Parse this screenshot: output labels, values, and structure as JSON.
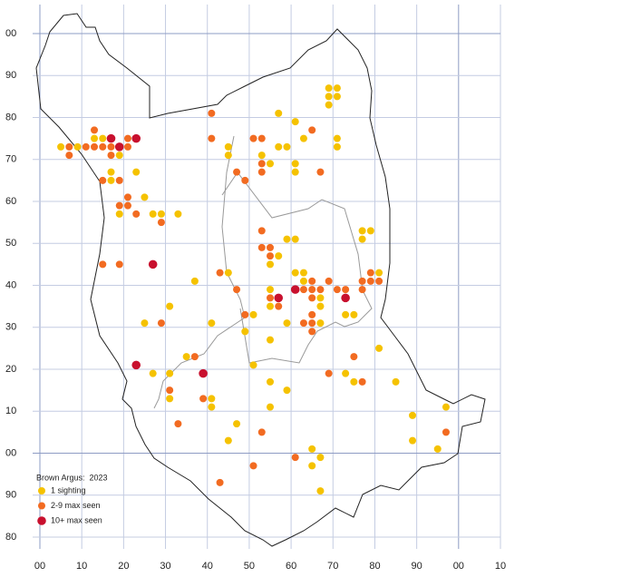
{
  "chart_data": {
    "type": "scatter",
    "legend_title": "Brown Argus:  2023",
    "legend": "lower left",
    "grid": true,
    "xlim": [
      0,
      110
    ],
    "ylim": [
      -20,
      100
    ],
    "xticks": [
      {
        "value": 0,
        "label": "00"
      },
      10,
      20,
      30,
      40,
      50,
      60,
      70,
      80,
      90,
      {
        "value": 100,
        "label": "00"
      },
      {
        "value": 110,
        "label": "10"
      }
    ],
    "yticks": [
      {
        "value": 100,
        "label": "00"
      },
      90,
      80,
      70,
      60,
      50,
      40,
      30,
      20,
      10,
      {
        "value": 0,
        "label": "00"
      },
      {
        "value": -10,
        "label": "90"
      },
      {
        "value": -20,
        "label": "80"
      }
    ],
    "series": [
      {
        "name": "1 sighting",
        "color": "#f5c200",
        "x": [
          5,
          9,
          13,
          15,
          19,
          17,
          23,
          17,
          25,
          19,
          27,
          29,
          33,
          37,
          31,
          25,
          45,
          45,
          53,
          55,
          57,
          57,
          59,
          61,
          61,
          61,
          63,
          69,
          69,
          69,
          71,
          71,
          71,
          71,
          57,
          55,
          59,
          61,
          45,
          61,
          63,
          63,
          55,
          55,
          67,
          67,
          67,
          59,
          51,
          49,
          41,
          55,
          81,
          77,
          77,
          79,
          73,
          75,
          81,
          73,
          75,
          85,
          27,
          31,
          31,
          35,
          41,
          41,
          47,
          45,
          51,
          55,
          55,
          59,
          65,
          67,
          65,
          67,
          89,
          89,
          97,
          95
        ],
        "values": [
          73,
          73,
          75,
          75,
          71,
          67,
          67,
          65,
          61,
          57,
          57,
          57,
          57,
          41,
          35,
          31,
          73,
          71,
          71,
          69,
          81,
          73,
          73,
          79,
          69,
          67,
          75,
          87,
          85,
          83,
          87,
          85,
          75,
          73,
          47,
          45,
          51,
          51,
          43,
          43,
          43,
          41,
          39,
          35,
          37,
          35,
          31,
          31,
          33,
          29,
          31,
          27,
          43,
          53,
          51,
          53,
          33,
          33,
          25,
          19,
          17,
          17,
          19,
          19,
          13,
          23,
          13,
          11,
          7,
          3,
          21,
          17,
          11,
          15,
          1,
          -1,
          -3,
          -9,
          9,
          3,
          11,
          1
        ]
      },
      {
        "name": "2-9 max seen",
        "color": "#f26b21",
        "x": [
          7,
          7,
          11,
          13,
          13,
          15,
          17,
          17,
          19,
          21,
          21,
          15,
          19,
          21,
          19,
          21,
          23,
          29,
          15,
          19,
          29,
          41,
          41,
          51,
          53,
          53,
          47,
          53,
          49,
          65,
          67,
          53,
          53,
          55,
          55,
          43,
          47,
          65,
          63,
          65,
          67,
          69,
          71,
          73,
          55,
          57,
          65,
          65,
          63,
          65,
          65,
          49,
          77,
          77,
          79,
          79,
          81,
          75,
          69,
          77,
          31,
          37,
          39,
          33,
          53,
          51,
          61,
          43,
          97
        ],
        "values": [
          73,
          71,
          73,
          73,
          77,
          73,
          73,
          71,
          73,
          75,
          73,
          65,
          65,
          61,
          59,
          59,
          57,
          55,
          45,
          45,
          31,
          81,
          75,
          75,
          75,
          69,
          67,
          67,
          65,
          77,
          67,
          53,
          49,
          49,
          47,
          43,
          39,
          41,
          39,
          39,
          39,
          41,
          39,
          39,
          37,
          35,
          37,
          33,
          31,
          31,
          29,
          33,
          41,
          39,
          43,
          41,
          41,
          23,
          19,
          17,
          15,
          23,
          13,
          7,
          5,
          -3,
          -1,
          -7,
          5
        ]
      },
      {
        "name": "10+ max seen",
        "color": "#c8102e",
        "x": [
          17,
          19,
          23,
          27,
          61,
          73,
          57,
          23,
          39
        ],
        "values": [
          75,
          73,
          75,
          45,
          39,
          37,
          37,
          21,
          19
        ]
      }
    ]
  }
}
